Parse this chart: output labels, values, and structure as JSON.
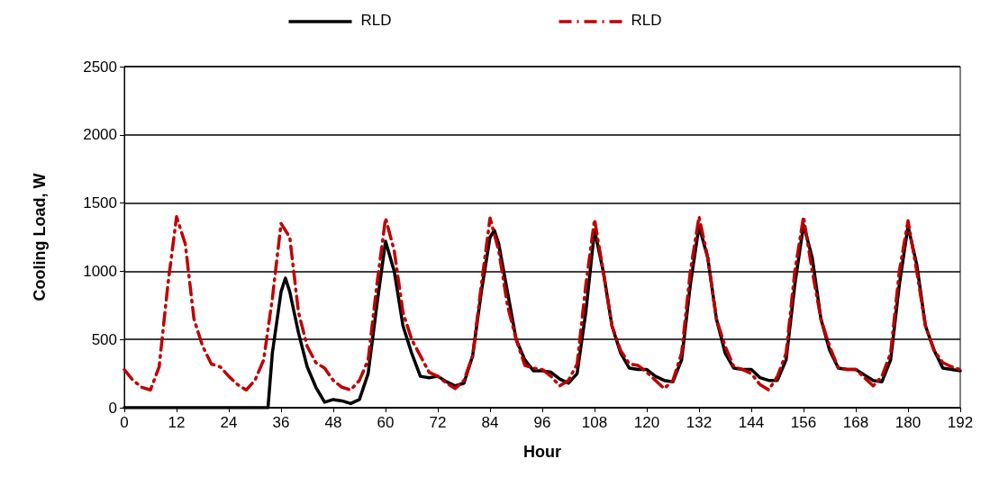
{
  "chart_data": {
    "type": "line",
    "xlabel": "Hour",
    "ylabel": "Cooling Load, W",
    "legend": "top",
    "grid": "y",
    "marker": "none",
    "xlim": [
      0,
      192
    ],
    "xticks": [
      0,
      12,
      24,
      36,
      48,
      60,
      72,
      84,
      96,
      108,
      120,
      132,
      144,
      156,
      168,
      180,
      192
    ],
    "ylim": [
      0,
      2500
    ],
    "yticks": [
      0,
      500,
      1000,
      1500,
      2000,
      2500
    ],
    "series": [
      {
        "name": "RLD",
        "color": "#000000",
        "line_style": "solid",
        "x": [
          0,
          33,
          34,
          36,
          37,
          38,
          40,
          42,
          44,
          46,
          48,
          50,
          52,
          54,
          56,
          58,
          60,
          62,
          64,
          66,
          68,
          70,
          72,
          74,
          76,
          78,
          80,
          82,
          84,
          85,
          86,
          88,
          90,
          92,
          94,
          96,
          98,
          100,
          102,
          104,
          106,
          108,
          110,
          112,
          114,
          116,
          118,
          120,
          122,
          124,
          126,
          128,
          130,
          132,
          134,
          136,
          138,
          140,
          142,
          144,
          146,
          148,
          150,
          152,
          154,
          156,
          158,
          160,
          162,
          164,
          166,
          168,
          170,
          172,
          174,
          176,
          178,
          180,
          182,
          184,
          186,
          188,
          190,
          192
        ],
        "values": [
          0,
          0,
          400,
          850,
          950,
          850,
          550,
          300,
          150,
          40,
          60,
          50,
          30,
          60,
          250,
          750,
          1220,
          1000,
          600,
          400,
          230,
          220,
          230,
          190,
          160,
          180,
          380,
          850,
          1250,
          1300,
          1200,
          850,
          500,
          350,
          270,
          270,
          260,
          210,
          180,
          250,
          700,
          1300,
          1000,
          600,
          400,
          290,
          280,
          280,
          230,
          200,
          190,
          350,
          900,
          1330,
          1100,
          650,
          400,
          290,
          280,
          280,
          220,
          200,
          200,
          350,
          900,
          1340,
          1100,
          650,
          420,
          290,
          280,
          280,
          240,
          200,
          190,
          350,
          900,
          1330,
          1050,
          600,
          420,
          290,
          280,
          270
        ]
      },
      {
        "name": "RLD",
        "color": "#c00000",
        "line_style": "dashed",
        "x": [
          0,
          2,
          4,
          6,
          8,
          10,
          12,
          14,
          16,
          18,
          20,
          22,
          24,
          26,
          28,
          30,
          32,
          34,
          36,
          38,
          40,
          42,
          44,
          46,
          48,
          50,
          52,
          54,
          56,
          58,
          60,
          62,
          64,
          66,
          68,
          70,
          72,
          74,
          76,
          78,
          80,
          82,
          84,
          86,
          88,
          90,
          92,
          94,
          96,
          98,
          100,
          102,
          104,
          106,
          108,
          110,
          112,
          114,
          116,
          118,
          120,
          122,
          124,
          126,
          128,
          130,
          132,
          134,
          136,
          138,
          140,
          142,
          144,
          146,
          148,
          150,
          152,
          154,
          156,
          158,
          160,
          162,
          164,
          166,
          168,
          170,
          172,
          174,
          176,
          178,
          180,
          182,
          184,
          186,
          188,
          190,
          192
        ],
        "values": [
          280,
          200,
          150,
          130,
          300,
          900,
          1400,
          1200,
          650,
          450,
          320,
          300,
          230,
          170,
          130,
          200,
          350,
          800,
          1350,
          1250,
          700,
          450,
          330,
          290,
          200,
          150,
          130,
          200,
          350,
          900,
          1390,
          1150,
          700,
          500,
          380,
          260,
          230,
          180,
          140,
          200,
          380,
          900,
          1390,
          1150,
          750,
          500,
          310,
          290,
          280,
          230,
          160,
          200,
          320,
          900,
          1380,
          1000,
          600,
          420,
          320,
          310,
          260,
          200,
          140,
          200,
          400,
          1000,
          1400,
          1100,
          650,
          450,
          300,
          280,
          250,
          170,
          130,
          230,
          400,
          1000,
          1400,
          1000,
          650,
          450,
          290,
          280,
          280,
          220,
          160,
          230,
          400,
          1000,
          1370,
          1000,
          600,
          420,
          330,
          300,
          280
        ]
      }
    ]
  }
}
